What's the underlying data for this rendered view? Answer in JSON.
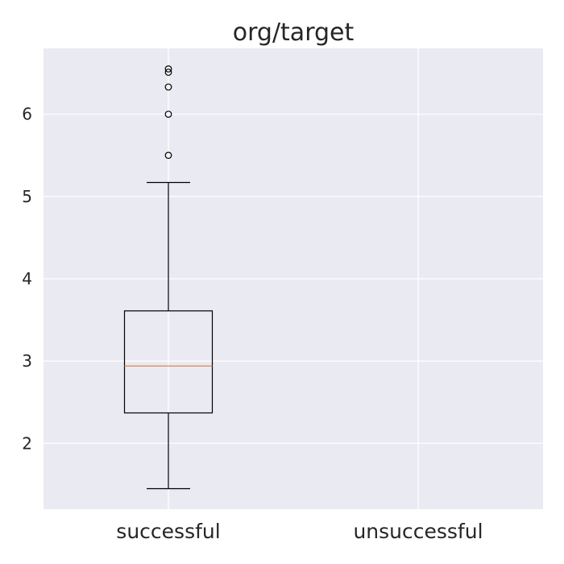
{
  "chart_data": {
    "type": "box",
    "title": "org/target",
    "xlabel": "",
    "ylabel": "",
    "categories": [
      "successful",
      "unsuccessful"
    ],
    "ylim": [
      1.2,
      6.8
    ],
    "yticks": [
      2,
      3,
      4,
      5,
      6
    ],
    "grid": true,
    "series": [
      {
        "category": "successful",
        "whisker_low": 1.45,
        "q1": 2.37,
        "median": 2.94,
        "q3": 3.61,
        "whisker_high": 5.17,
        "outliers": [
          5.5,
          6.0,
          6.33,
          6.51,
          6.55
        ]
      },
      {
        "category": "unsuccessful",
        "whisker_low": null,
        "q1": null,
        "median": null,
        "q3": null,
        "whisker_high": null,
        "outliers": []
      }
    ],
    "colors": {
      "plot_background": "#eaeaf2",
      "grid": "#ffffff",
      "box": "#000000",
      "median": "#dd8452",
      "text": "#262626"
    }
  }
}
